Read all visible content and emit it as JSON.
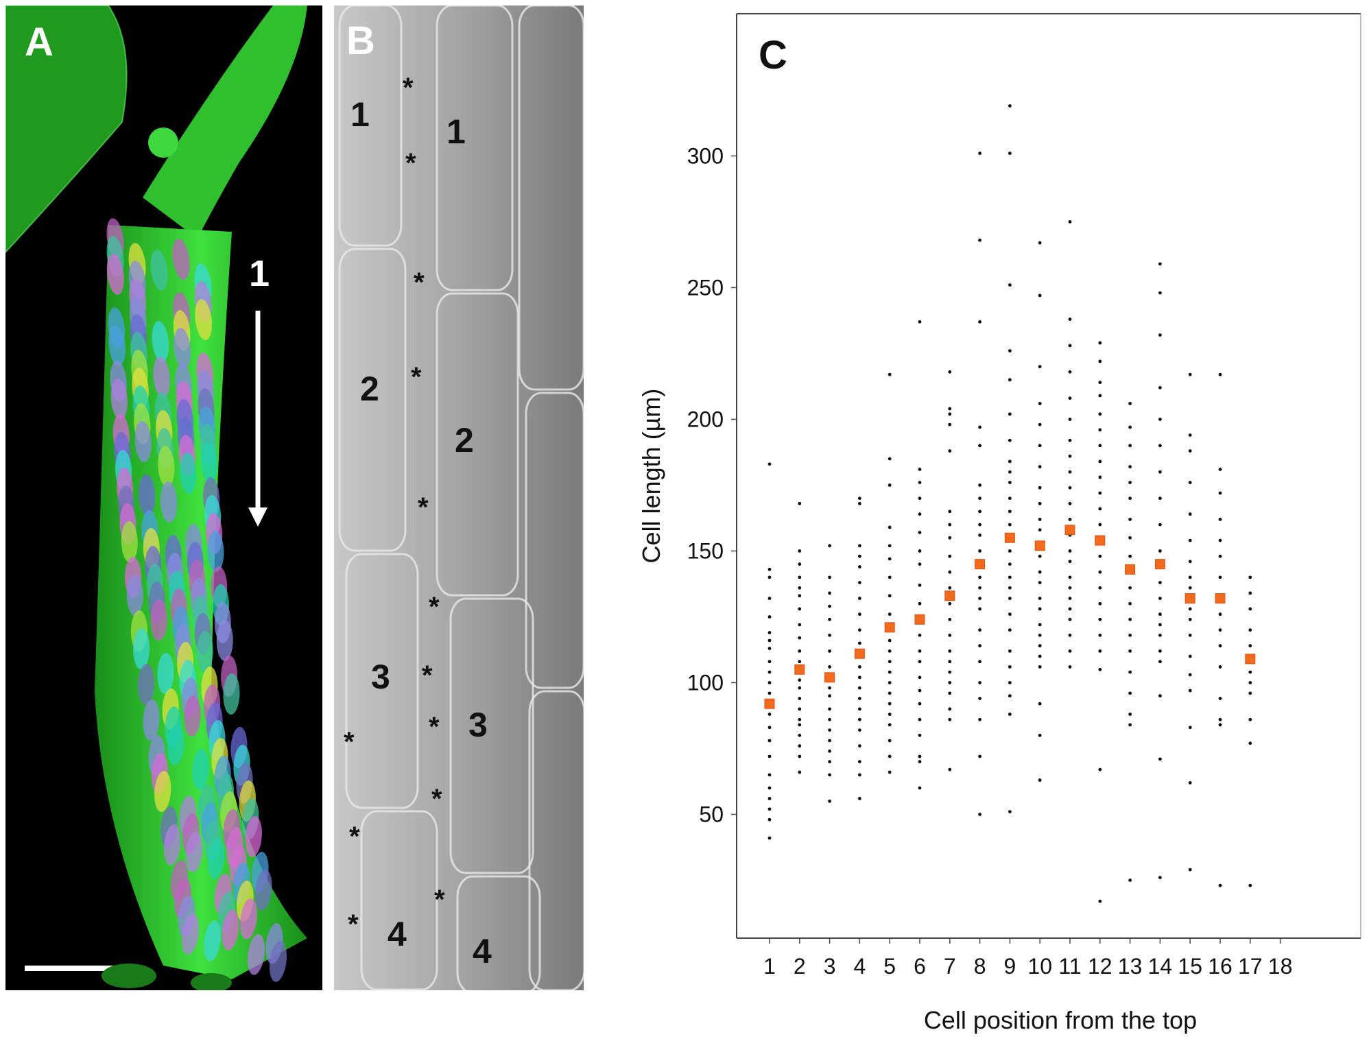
{
  "panels": {
    "a": {
      "letter": "A",
      "region_label": "1"
    },
    "b": {
      "letter": "B",
      "left_numbers": [
        "1",
        "2",
        "3",
        "4"
      ],
      "right_numbers": [
        "1",
        "2",
        "3",
        "4"
      ],
      "asterisk": "*"
    }
  },
  "colors": {
    "point": "#111111",
    "mean_marker": "#f26a1b",
    "mean_marker_edge": "#d9531a",
    "axis": "#444444",
    "tissue_green": "#2fcf2f",
    "sem_gray": "#9a9a9a"
  },
  "chart_data": {
    "type": "scatter",
    "panel_label": "C",
    "xlabel": "Cell position from the top",
    "ylabel": "Cell length (µm)",
    "categories": [
      "1",
      "2",
      "3",
      "4",
      "5",
      "6",
      "7",
      "8",
      "9",
      "10",
      "11",
      "12",
      "13",
      "14",
      "15",
      "16",
      "17",
      "18"
    ],
    "yticks": [
      50,
      100,
      150,
      200,
      250,
      300
    ],
    "ylim": [
      3,
      354
    ],
    "grid": false,
    "series": [
      {
        "values": [
          92,
          105,
          102,
          111,
          121,
          124,
          133,
          145,
          155,
          152,
          158,
          154,
          143,
          145,
          132,
          132,
          109
        ]
      }
    ],
    "mean_positions": [
      1,
      2,
      3,
      4,
      5,
      6,
      7,
      8,
      9,
      10,
      11,
      12,
      13,
      14,
      15,
      16,
      17
    ],
    "points": [
      [
        1,
        41
      ],
      [
        1,
        48
      ],
      [
        1,
        52
      ],
      [
        1,
        56
      ],
      [
        1,
        60
      ],
      [
        1,
        65
      ],
      [
        1,
        72
      ],
      [
        1,
        78
      ],
      [
        1,
        83
      ],
      [
        1,
        88
      ],
      [
        1,
        92
      ],
      [
        1,
        96
      ],
      [
        1,
        100
      ],
      [
        1,
        104
      ],
      [
        1,
        108
      ],
      [
        1,
        113
      ],
      [
        1,
        116
      ],
      [
        1,
        119
      ],
      [
        1,
        125
      ],
      [
        1,
        132
      ],
      [
        1,
        140
      ],
      [
        1,
        143
      ],
      [
        1,
        183
      ],
      [
        2,
        66
      ],
      [
        2,
        72
      ],
      [
        2,
        76
      ],
      [
        2,
        80
      ],
      [
        2,
        84
      ],
      [
        2,
        86
      ],
      [
        2,
        90
      ],
      [
        2,
        94
      ],
      [
        2,
        98
      ],
      [
        2,
        101
      ],
      [
        2,
        104
      ],
      [
        2,
        108
      ],
      [
        2,
        112
      ],
      [
        2,
        117
      ],
      [
        2,
        122
      ],
      [
        2,
        128
      ],
      [
        2,
        133
      ],
      [
        2,
        136
      ],
      [
        2,
        140
      ],
      [
        2,
        145
      ],
      [
        2,
        150
      ],
      [
        2,
        168
      ],
      [
        3,
        55
      ],
      [
        3,
        65
      ],
      [
        3,
        70
      ],
      [
        3,
        74
      ],
      [
        3,
        78
      ],
      [
        3,
        82
      ],
      [
        3,
        86
      ],
      [
        3,
        90
      ],
      [
        3,
        95
      ],
      [
        3,
        98
      ],
      [
        3,
        102
      ],
      [
        3,
        106
      ],
      [
        3,
        112
      ],
      [
        3,
        118
      ],
      [
        3,
        124
      ],
      [
        3,
        129
      ],
      [
        3,
        134
      ],
      [
        3,
        140
      ],
      [
        3,
        152
      ],
      [
        4,
        56
      ],
      [
        4,
        65
      ],
      [
        4,
        70
      ],
      [
        4,
        76
      ],
      [
        4,
        82
      ],
      [
        4,
        86
      ],
      [
        4,
        90
      ],
      [
        4,
        94
      ],
      [
        4,
        98
      ],
      [
        4,
        102
      ],
      [
        4,
        106
      ],
      [
        4,
        110
      ],
      [
        4,
        115
      ],
      [
        4,
        120
      ],
      [
        4,
        126
      ],
      [
        4,
        132
      ],
      [
        4,
        138
      ],
      [
        4,
        144
      ],
      [
        4,
        148
      ],
      [
        4,
        152
      ],
      [
        4,
        168
      ],
      [
        4,
        170
      ],
      [
        5,
        66
      ],
      [
        5,
        72
      ],
      [
        5,
        78
      ],
      [
        5,
        84
      ],
      [
        5,
        88
      ],
      [
        5,
        92
      ],
      [
        5,
        96
      ],
      [
        5,
        100
      ],
      [
        5,
        104
      ],
      [
        5,
        108
      ],
      [
        5,
        112
      ],
      [
        5,
        116
      ],
      [
        5,
        120
      ],
      [
        5,
        126
      ],
      [
        5,
        133
      ],
      [
        5,
        140
      ],
      [
        5,
        147
      ],
      [
        5,
        152
      ],
      [
        5,
        159
      ],
      [
        5,
        175
      ],
      [
        5,
        185
      ],
      [
        5,
        217
      ],
      [
        6,
        60
      ],
      [
        6,
        70
      ],
      [
        6,
        72
      ],
      [
        6,
        80
      ],
      [
        6,
        86
      ],
      [
        6,
        92
      ],
      [
        6,
        97
      ],
      [
        6,
        102
      ],
      [
        6,
        108
      ],
      [
        6,
        112
      ],
      [
        6,
        118
      ],
      [
        6,
        124
      ],
      [
        6,
        130
      ],
      [
        6,
        137
      ],
      [
        6,
        145
      ],
      [
        6,
        150
      ],
      [
        6,
        157
      ],
      [
        6,
        164
      ],
      [
        6,
        170
      ],
      [
        6,
        176
      ],
      [
        6,
        181
      ],
      [
        6,
        237
      ],
      [
        7,
        67
      ],
      [
        7,
        86
      ],
      [
        7,
        90
      ],
      [
        7,
        96
      ],
      [
        7,
        100
      ],
      [
        7,
        104
      ],
      [
        7,
        108
      ],
      [
        7,
        112
      ],
      [
        7,
        118
      ],
      [
        7,
        124
      ],
      [
        7,
        130
      ],
      [
        7,
        136
      ],
      [
        7,
        142
      ],
      [
        7,
        148
      ],
      [
        7,
        155
      ],
      [
        7,
        160
      ],
      [
        7,
        165
      ],
      [
        7,
        188
      ],
      [
        7,
        198
      ],
      [
        7,
        202
      ],
      [
        7,
        204
      ],
      [
        7,
        218
      ],
      [
        8,
        50
      ],
      [
        8,
        72
      ],
      [
        8,
        86
      ],
      [
        8,
        94
      ],
      [
        8,
        100
      ],
      [
        8,
        108
      ],
      [
        8,
        114
      ],
      [
        8,
        120
      ],
      [
        8,
        128
      ],
      [
        8,
        132
      ],
      [
        8,
        136
      ],
      [
        8,
        140
      ],
      [
        8,
        146
      ],
      [
        8,
        150
      ],
      [
        8,
        156
      ],
      [
        8,
        160
      ],
      [
        8,
        165
      ],
      [
        8,
        170
      ],
      [
        8,
        175
      ],
      [
        8,
        190
      ],
      [
        8,
        197
      ],
      [
        8,
        237
      ],
      [
        8,
        268
      ],
      [
        8,
        301
      ],
      [
        9,
        51
      ],
      [
        9,
        88
      ],
      [
        9,
        95
      ],
      [
        9,
        100
      ],
      [
        9,
        106
      ],
      [
        9,
        112
      ],
      [
        9,
        120
      ],
      [
        9,
        126
      ],
      [
        9,
        132
      ],
      [
        9,
        136
      ],
      [
        9,
        140
      ],
      [
        9,
        145
      ],
      [
        9,
        150
      ],
      [
        9,
        155
      ],
      [
        9,
        160
      ],
      [
        9,
        165
      ],
      [
        9,
        170
      ],
      [
        9,
        176
      ],
      [
        9,
        180
      ],
      [
        9,
        184
      ],
      [
        9,
        192
      ],
      [
        9,
        202
      ],
      [
        9,
        215
      ],
      [
        9,
        226
      ],
      [
        9,
        251
      ],
      [
        9,
        301
      ],
      [
        9,
        319
      ],
      [
        10,
        63
      ],
      [
        10,
        80
      ],
      [
        10,
        92
      ],
      [
        10,
        106
      ],
      [
        10,
        110
      ],
      [
        10,
        114
      ],
      [
        10,
        118
      ],
      [
        10,
        122
      ],
      [
        10,
        128
      ],
      [
        10,
        132
      ],
      [
        10,
        138
      ],
      [
        10,
        142
      ],
      [
        10,
        148
      ],
      [
        10,
        152
      ],
      [
        10,
        158
      ],
      [
        10,
        162
      ],
      [
        10,
        168
      ],
      [
        10,
        174
      ],
      [
        10,
        182
      ],
      [
        10,
        190
      ],
      [
        10,
        198
      ],
      [
        10,
        206
      ],
      [
        10,
        220
      ],
      [
        10,
        247
      ],
      [
        10,
        267
      ],
      [
        11,
        106
      ],
      [
        11,
        112
      ],
      [
        11,
        118
      ],
      [
        11,
        124
      ],
      [
        11,
        128
      ],
      [
        11,
        132
      ],
      [
        11,
        136
      ],
      [
        11,
        140
      ],
      [
        11,
        146
      ],
      [
        11,
        150
      ],
      [
        11,
        156
      ],
      [
        11,
        162
      ],
      [
        11,
        168
      ],
      [
        11,
        174
      ],
      [
        11,
        180
      ],
      [
        11,
        186
      ],
      [
        11,
        192
      ],
      [
        11,
        200
      ],
      [
        11,
        208
      ],
      [
        11,
        218
      ],
      [
        11,
        228
      ],
      [
        11,
        238
      ],
      [
        11,
        275
      ],
      [
        12,
        17
      ],
      [
        12,
        67
      ],
      [
        12,
        105
      ],
      [
        12,
        112
      ],
      [
        12,
        118
      ],
      [
        12,
        124
      ],
      [
        12,
        130
      ],
      [
        12,
        136
      ],
      [
        12,
        142
      ],
      [
        12,
        148
      ],
      [
        12,
        154
      ],
      [
        12,
        160
      ],
      [
        12,
        166
      ],
      [
        12,
        172
      ],
      [
        12,
        178
      ],
      [
        12,
        184
      ],
      [
        12,
        190
      ],
      [
        12,
        196
      ],
      [
        12,
        202
      ],
      [
        12,
        209
      ],
      [
        12,
        214
      ],
      [
        12,
        222
      ],
      [
        12,
        229
      ],
      [
        13,
        25
      ],
      [
        13,
        84
      ],
      [
        13,
        88
      ],
      [
        13,
        96
      ],
      [
        13,
        104
      ],
      [
        13,
        112
      ],
      [
        13,
        118
      ],
      [
        13,
        124
      ],
      [
        13,
        130
      ],
      [
        13,
        136
      ],
      [
        13,
        142
      ],
      [
        13,
        148
      ],
      [
        13,
        155
      ],
      [
        13,
        162
      ],
      [
        13,
        170
      ],
      [
        13,
        176
      ],
      [
        13,
        182
      ],
      [
        13,
        190
      ],
      [
        13,
        197
      ],
      [
        13,
        206
      ],
      [
        14,
        26
      ],
      [
        14,
        71
      ],
      [
        14,
        95
      ],
      [
        14,
        108
      ],
      [
        14,
        112
      ],
      [
        14,
        118
      ],
      [
        14,
        122
      ],
      [
        14,
        126
      ],
      [
        14,
        132
      ],
      [
        14,
        138
      ],
      [
        14,
        144
      ],
      [
        14,
        150
      ],
      [
        14,
        160
      ],
      [
        14,
        170
      ],
      [
        14,
        180
      ],
      [
        14,
        190
      ],
      [
        14,
        200
      ],
      [
        14,
        212
      ],
      [
        14,
        232
      ],
      [
        14,
        248
      ],
      [
        14,
        259
      ],
      [
        15,
        29
      ],
      [
        15,
        62
      ],
      [
        15,
        83
      ],
      [
        15,
        97
      ],
      [
        15,
        103
      ],
      [
        15,
        110
      ],
      [
        15,
        118
      ],
      [
        15,
        124
      ],
      [
        15,
        128
      ],
      [
        15,
        132
      ],
      [
        15,
        136
      ],
      [
        15,
        140
      ],
      [
        15,
        146
      ],
      [
        15,
        154
      ],
      [
        15,
        164
      ],
      [
        15,
        176
      ],
      [
        15,
        188
      ],
      [
        15,
        194
      ],
      [
        15,
        217
      ],
      [
        16,
        23
      ],
      [
        16,
        84
      ],
      [
        16,
        86
      ],
      [
        16,
        94
      ],
      [
        16,
        106
      ],
      [
        16,
        114
      ],
      [
        16,
        120
      ],
      [
        16,
        126
      ],
      [
        16,
        132
      ],
      [
        16,
        140
      ],
      [
        16,
        148
      ],
      [
        16,
        154
      ],
      [
        16,
        162
      ],
      [
        16,
        172
      ],
      [
        16,
        181
      ],
      [
        16,
        217
      ],
      [
        17,
        23
      ],
      [
        17,
        77
      ],
      [
        17,
        86
      ],
      [
        17,
        96
      ],
      [
        17,
        100
      ],
      [
        17,
        104
      ],
      [
        17,
        108
      ],
      [
        17,
        114
      ],
      [
        17,
        120
      ],
      [
        17,
        128
      ],
      [
        17,
        134
      ],
      [
        17,
        140
      ]
    ]
  }
}
